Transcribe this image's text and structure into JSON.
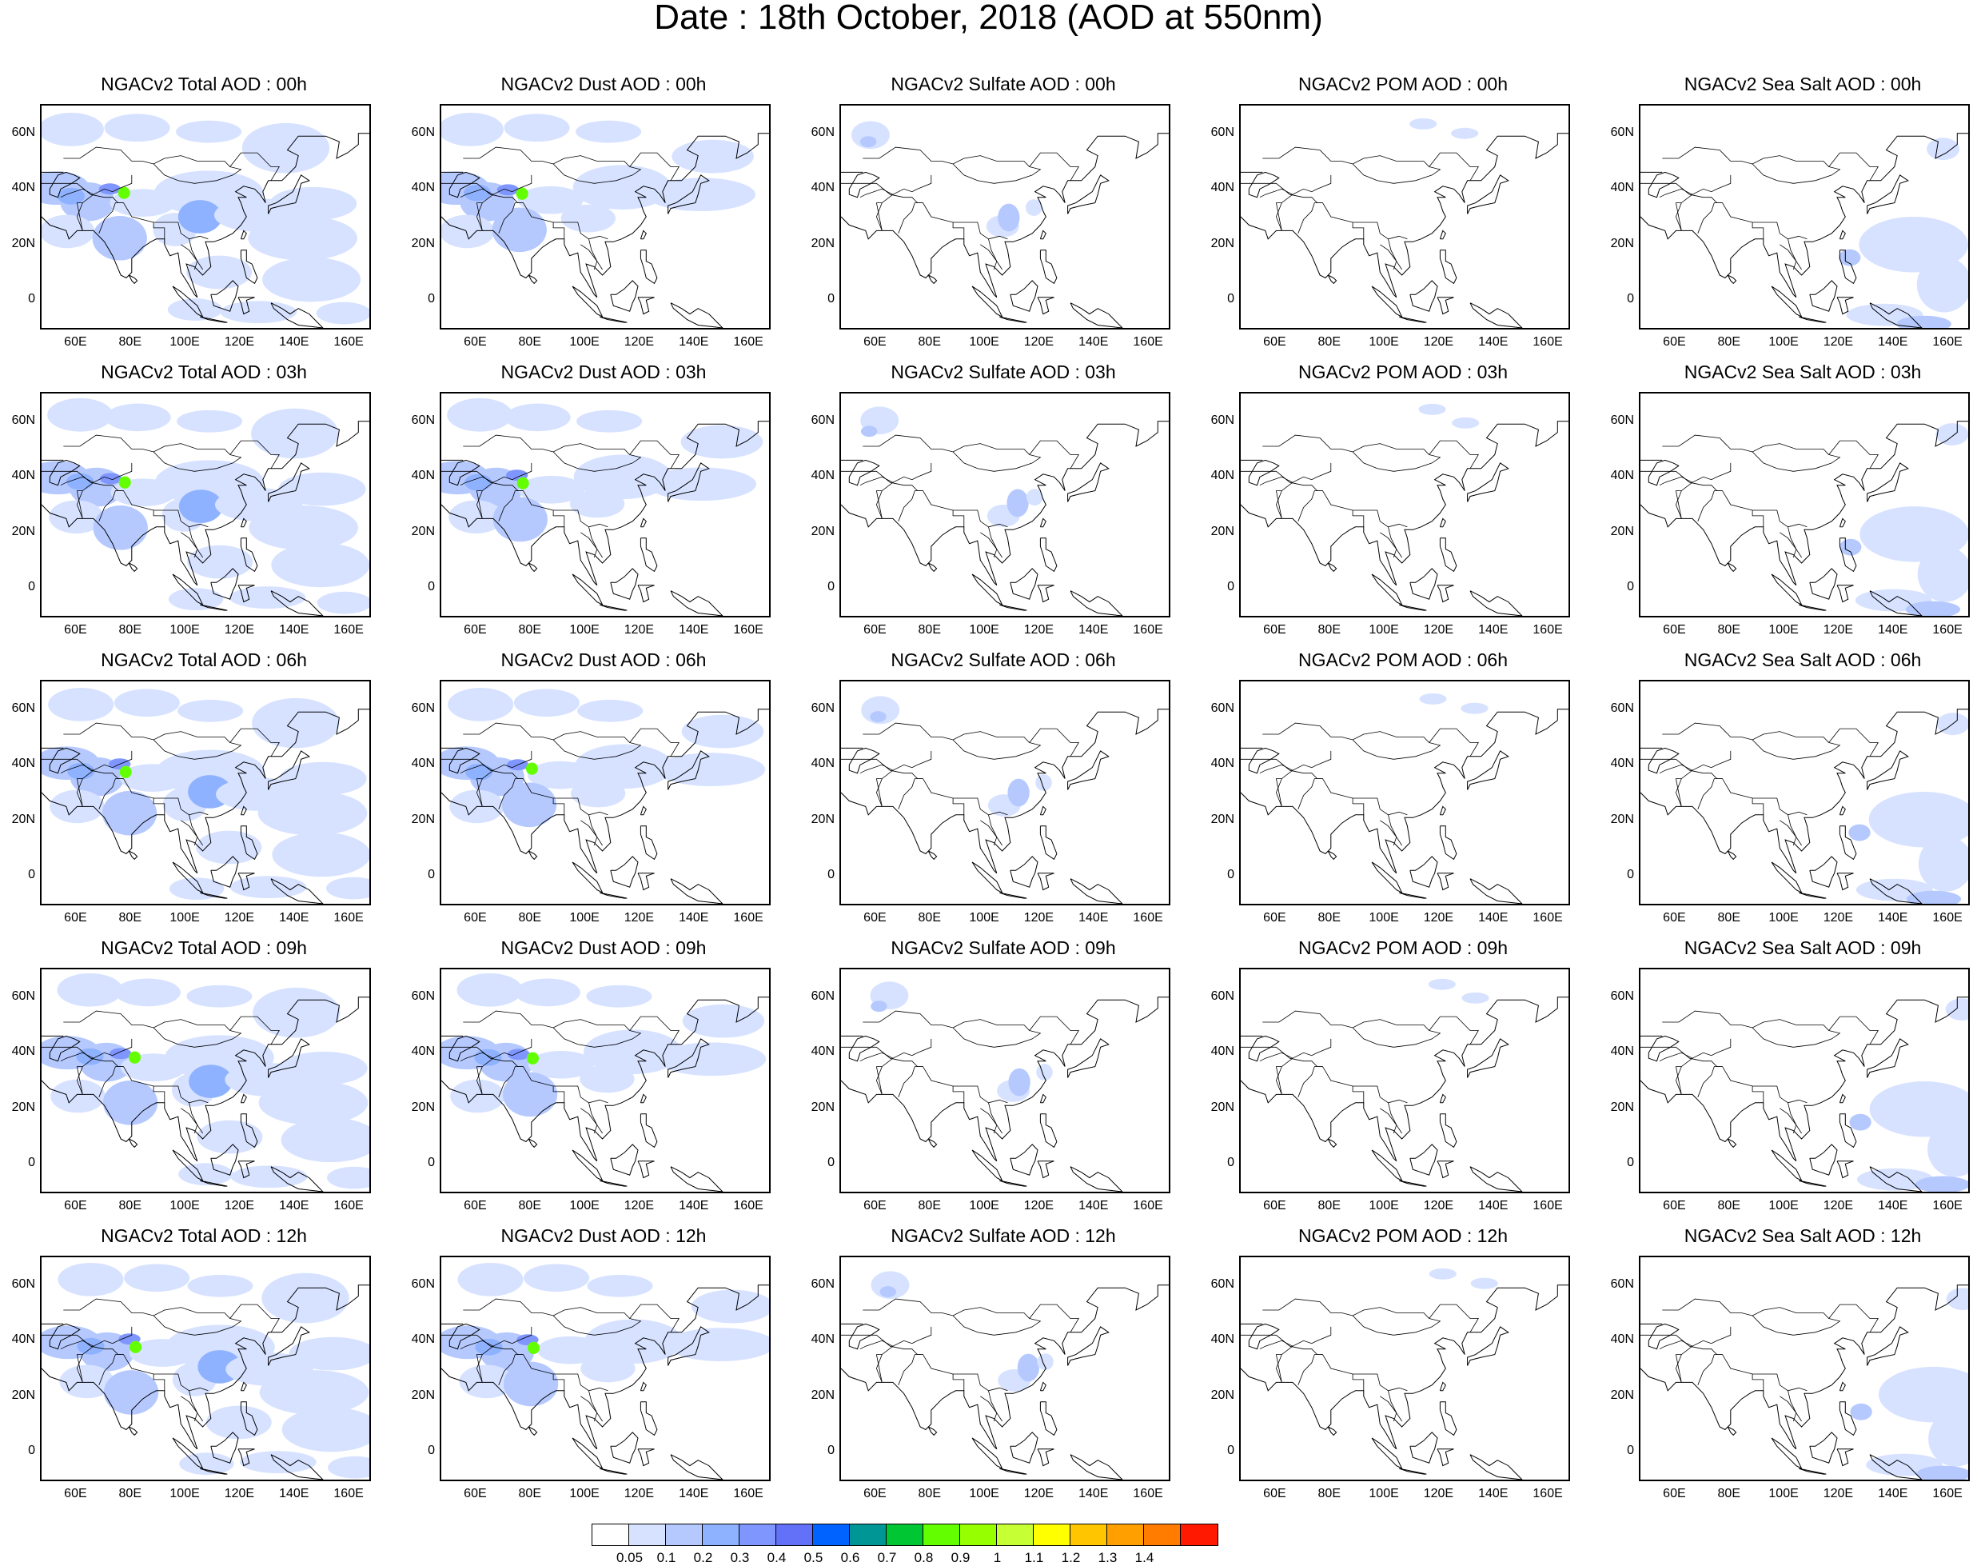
{
  "figure_title": "Date : 18th October, 2018 (AOD at 550nm)",
  "panels": [
    [
      "NGACv2 Total AOD : 00h",
      "NGACv2 Dust AOD : 00h",
      "NGACv2 Sulfate AOD : 00h",
      "NGACv2 POM AOD : 00h",
      "NGACv2 Sea Salt AOD : 00h"
    ],
    [
      "NGACv2 Total AOD : 03h",
      "NGACv2 Dust AOD : 03h",
      "NGACv2 Sulfate AOD : 03h",
      "NGACv2 POM AOD : 03h",
      "NGACv2 Sea Salt AOD : 03h"
    ],
    [
      "NGACv2 Total AOD : 06h",
      "NGACv2 Dust AOD : 06h",
      "NGACv2 Sulfate AOD : 06h",
      "NGACv2 POM AOD : 06h",
      "NGACv2 Sea Salt AOD : 06h"
    ],
    [
      "NGACv2 Total AOD : 09h",
      "NGACv2 Dust AOD : 09h",
      "NGACv2 Sulfate AOD : 09h",
      "NGACv2 POM AOD : 09h",
      "NGACv2 Sea Salt  AOD : 09h"
    ],
    [
      "NGACv2 Total AOD  : 12h",
      "NGACv2 Dust AOD : 12h",
      "NGACv2 Sulfate AOD : 12h",
      "NGACv2 POM  AOD : 12h",
      "NGACv2 Sea Salt  AOD : 12h"
    ]
  ],
  "x_tick_labels": [
    "60E",
    "80E",
    "100E",
    "120E",
    "140E",
    "160E"
  ],
  "y_tick_labels": [
    "60N",
    "40N",
    "20N",
    "0"
  ],
  "map_extent": {
    "lon": [
      47,
      167
    ],
    "lat": [
      -10,
      70
    ]
  },
  "colorbar": {
    "labels": [
      "0.05",
      "0.1",
      "0.2",
      "0.3",
      "0.4",
      "0.5",
      "0.6",
      "0.7",
      "0.8",
      "0.9",
      "1",
      "1.1",
      "1.2",
      "1.3",
      "1.4"
    ],
    "colors": [
      "#ffffff",
      "#d6e2ff",
      "#b5c9ff",
      "#8eb2ff",
      "#7f96ff",
      "#6370f8",
      "#0063ff",
      "#009696",
      "#00c633",
      "#63ff00",
      "#96ff00",
      "#c6ff33",
      "#ffff00",
      "#ffc600",
      "#ffa000",
      "#ff7c00",
      "#ff1900"
    ]
  }
}
